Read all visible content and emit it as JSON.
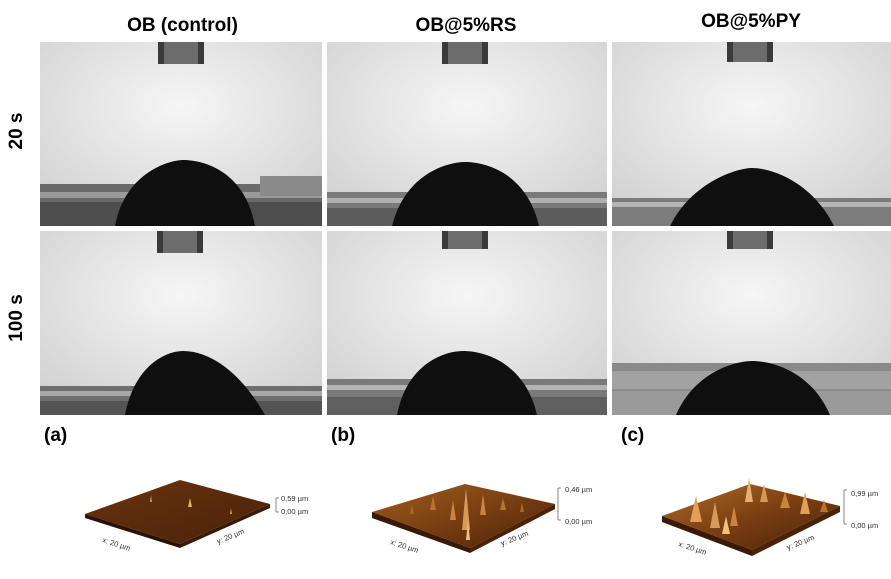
{
  "columns": [
    {
      "title": "OB (control)"
    },
    {
      "title": "OB@5%RS"
    },
    {
      "title": "OB@5%PY"
    }
  ],
  "rows": [
    {
      "label": "20 s"
    },
    {
      "label": "100 s"
    }
  ],
  "afm": [
    {
      "letter": "(a)",
      "z_max": "0,59 µm",
      "z_min": "0,00 µm",
      "x_label": "x: 20 µm",
      "y_label": "y: 20 µm"
    },
    {
      "letter": "(b)",
      "z_max": "0,46 µm",
      "z_min": "0,00 µm",
      "x_label": "x: 20 µm",
      "y_label": "y: 20 µm"
    },
    {
      "letter": "(c)",
      "z_max": "0,99 µm",
      "z_min": "0,00 µm",
      "x_label": "x: 20 µm",
      "y_label": "y: 20 µm"
    }
  ],
  "colors": {
    "background_gray": "#e8e8e8",
    "droplet": "#111111",
    "afm_brown": "#7a3e12",
    "afm_highlight": "#e0a05a"
  }
}
